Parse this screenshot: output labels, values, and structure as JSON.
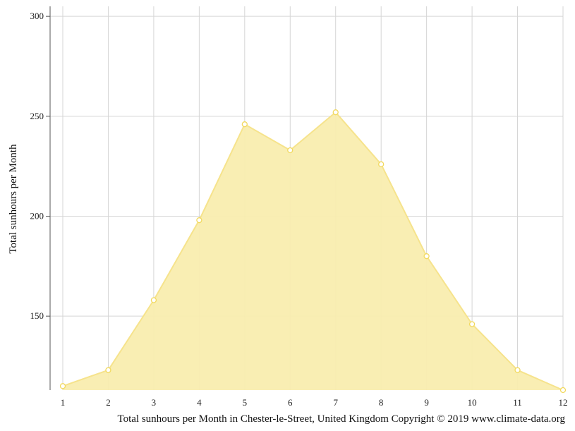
{
  "chart_data": {
    "type": "area",
    "x": [
      1,
      2,
      3,
      4,
      5,
      6,
      7,
      8,
      9,
      10,
      11,
      12
    ],
    "values": [
      115,
      123,
      158,
      198,
      246,
      233,
      252,
      226,
      180,
      146,
      123,
      113
    ],
    "ylabel": "Total sunhours per Month",
    "y_ticks": [
      150,
      200,
      250,
      300
    ],
    "ylim": [
      113,
      305
    ],
    "xlim": [
      1,
      12
    ],
    "grid": true,
    "colors": {
      "fill": "#f9edaf",
      "line": "#f6e38c",
      "marker_fill": "#ffffff",
      "marker_stroke": "#f2d95e",
      "grid": "#d5d5d5",
      "axis": "#555555"
    }
  },
  "caption": "Total sunhours per Month in Chester-le-Street, United Kingdom Copyright © 2019 www.climate-data.org"
}
